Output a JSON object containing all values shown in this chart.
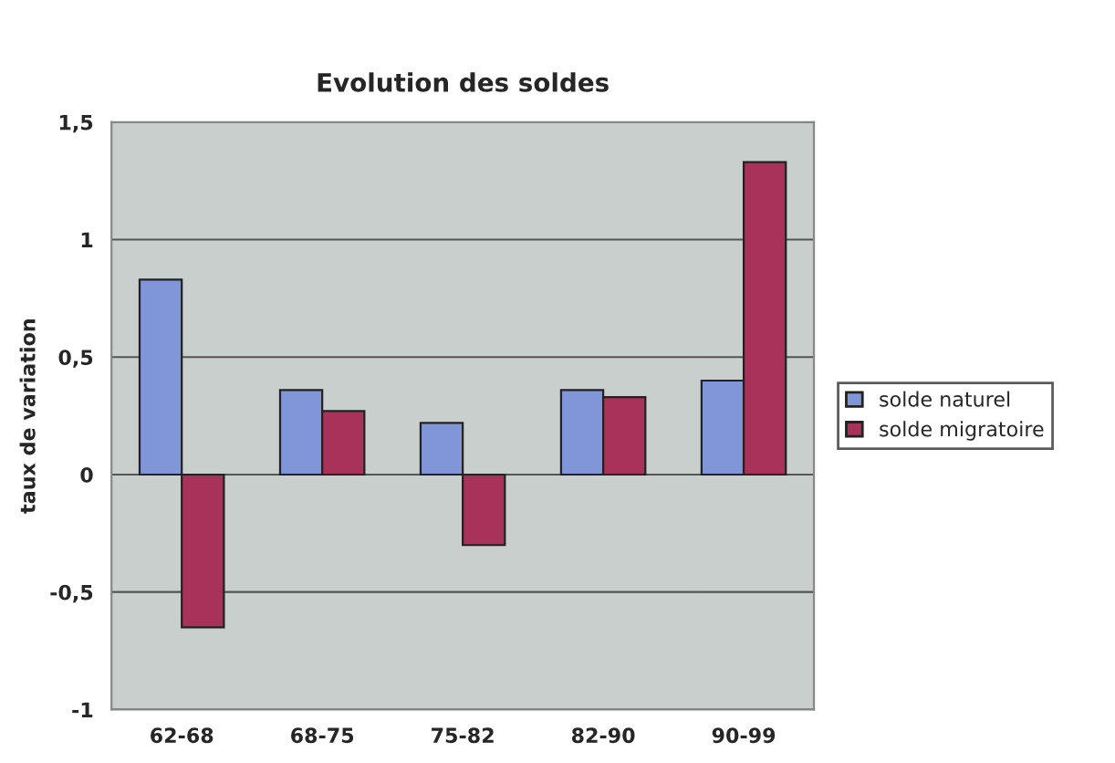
{
  "chart_data": {
    "type": "bar",
    "title": "Evolution des soldes",
    "ylabel": "taux de variation",
    "categories": [
      "62-68",
      "68-75",
      "75-82",
      "82-90",
      "90-99"
    ],
    "series": [
      {
        "name": "solde naturel",
        "color": "#8096d8",
        "values": [
          0.83,
          0.36,
          0.22,
          0.36,
          0.4
        ]
      },
      {
        "name": "solde migratoire",
        "color": "#a8325a",
        "values": [
          -0.65,
          0.27,
          -0.3,
          0.33,
          1.33
        ]
      }
    ],
    "ylim": [
      -1,
      1.5
    ],
    "yticks": [
      {
        "value": -1,
        "label": "-1"
      },
      {
        "value": -0.5,
        "label": "-0,5"
      },
      {
        "value": 0,
        "label": "0"
      },
      {
        "value": 0.5,
        "label": "0,5"
      },
      {
        "value": 1,
        "label": "1"
      },
      {
        "value": 1.5,
        "label": "1,5"
      }
    ],
    "grid": "y",
    "legend": "right"
  }
}
